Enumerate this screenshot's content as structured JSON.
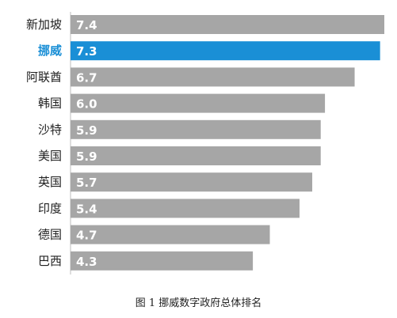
{
  "chart_data": {
    "type": "bar",
    "orientation": "horizontal",
    "categories": [
      "新加坡",
      "挪威",
      "阿联酋",
      "韩国",
      "沙特",
      "美国",
      "英国",
      "印度",
      "德国",
      "巴西"
    ],
    "values": [
      7.4,
      7.3,
      6.7,
      6.0,
      5.9,
      5.9,
      5.7,
      5.4,
      4.7,
      4.3
    ],
    "value_labels": [
      "7.4",
      "7.3",
      "6.7",
      "6.0",
      "5.9",
      "5.9",
      "5.7",
      "5.4",
      "4.7",
      "4.3"
    ],
    "highlight_category": "挪威",
    "colors": {
      "bar": "#a6a6a6",
      "highlight_bar": "#1a8fd6",
      "highlight_label": "#1a8fd6"
    },
    "xlim": [
      0,
      7.4
    ],
    "grid": false,
    "legend": "none"
  },
  "caption": "图 1  挪威数字政府总体排名"
}
